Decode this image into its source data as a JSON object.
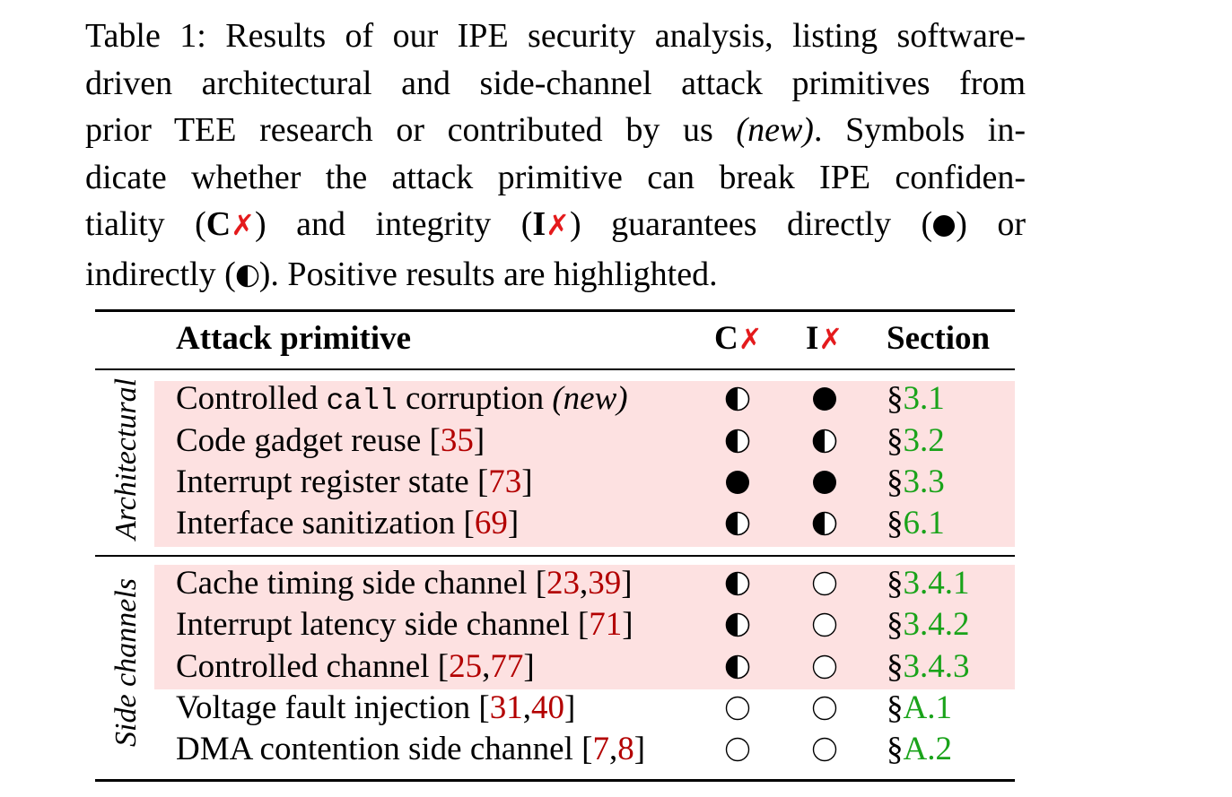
{
  "caption": {
    "line1": "Table 1:  Results of our IPE security analysis, listing software-",
    "line2": "driven architectural and side-channel attack primitives from",
    "line3_a": "prior TEE research or contributed by us ",
    "line3_em": "(new)",
    "line3_b": ". Symbols in-",
    "line4": "dicate whether the attack primitive can break IPE confiden-",
    "line5_a": "tiality (",
    "line5_c": "C",
    "line5_b": ") and integrity (",
    "line5_i": "I",
    "line5_c2": ") guarantees directly (",
    "line5_d": ") or",
    "line6_a": "indirectly (",
    "line6_b": "). Positive results are highlighted.",
    "xmark": "✗"
  },
  "header": {
    "attack": "Attack primitive",
    "c": "C",
    "i": "I",
    "x": "✗",
    "section": "Section"
  },
  "groups": {
    "architectural": "Architectural",
    "side_channels": "Side channels"
  },
  "rows": [
    {
      "pre": "Controlled ",
      "mono": "call",
      "post": " corruption ",
      "em": "(new)",
      "cites": [],
      "c": "half",
      "i": "full",
      "sec_sym": "§",
      "sec": "3.1",
      "highlight": true
    },
    {
      "pre": "Code gadget reuse [",
      "cites": [
        "35"
      ],
      "post": "]",
      "c": "half",
      "i": "half",
      "sec_sym": "§",
      "sec": "3.2",
      "highlight": true
    },
    {
      "pre": "Interrupt register state [",
      "cites": [
        "73"
      ],
      "post": "]",
      "c": "full",
      "i": "full",
      "sec_sym": "§",
      "sec": "3.3",
      "highlight": true
    },
    {
      "pre": "Interface sanitization [",
      "cites": [
        "69"
      ],
      "post": "]",
      "c": "half",
      "i": "half",
      "sec_sym": "§",
      "sec": "6.1",
      "highlight": true
    },
    {
      "pre": "Cache timing side channel [",
      "cites": [
        "23",
        "39"
      ],
      "post": "]",
      "c": "half",
      "i": "empty",
      "sec_sym": "§",
      "sec": "3.4.1",
      "highlight": true
    },
    {
      "pre": "Interrupt latency side channel [",
      "cites": [
        "71"
      ],
      "post": "]",
      "c": "half",
      "i": "empty",
      "sec_sym": "§",
      "sec": "3.4.2",
      "highlight": true
    },
    {
      "pre": "Controlled channel [",
      "cites": [
        "25",
        "77"
      ],
      "post": "]",
      "c": "half",
      "i": "empty",
      "sec_sym": "§",
      "sec": "3.4.3",
      "highlight": true
    },
    {
      "pre": "Voltage fault injection [",
      "cites": [
        "31",
        "40"
      ],
      "post": "]",
      "c": "empty",
      "i": "empty",
      "sec_sym": "§",
      "sec": "A.1",
      "highlight": false
    },
    {
      "pre": "DMA contention side channel [",
      "cites": [
        "7",
        "8"
      ],
      "post": "]",
      "c": "empty",
      "i": "empty",
      "sec_sym": "§",
      "sec": "A.2",
      "highlight": false
    }
  ]
}
